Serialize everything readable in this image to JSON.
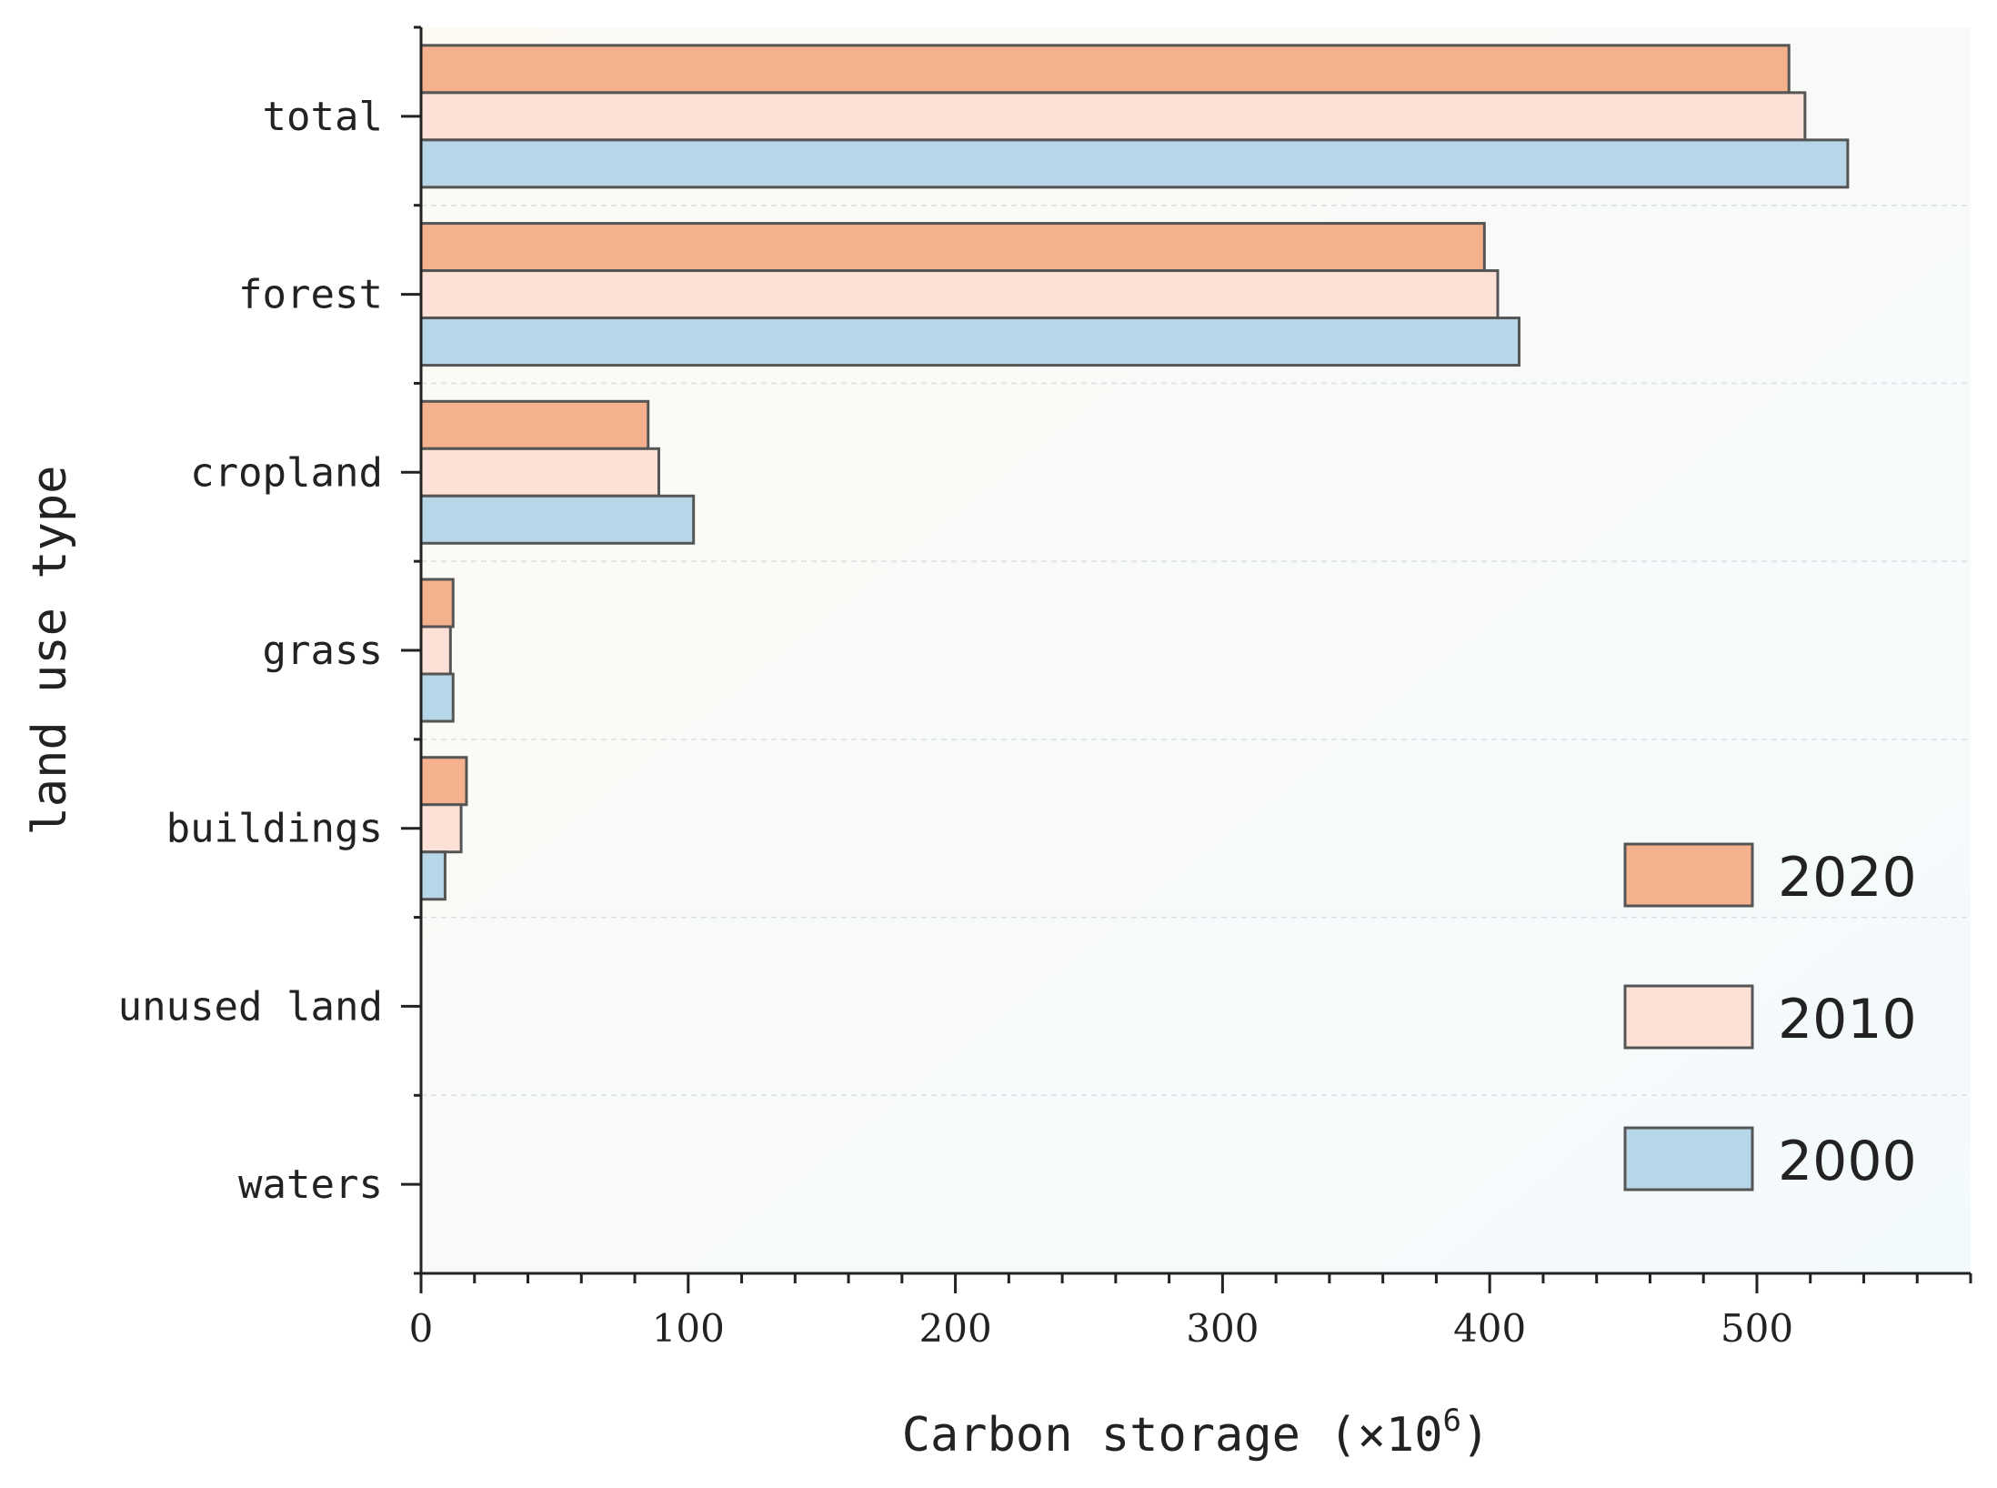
{
  "chart_data": {
    "type": "bar",
    "orientation": "horizontal",
    "categories": [
      "total",
      "forest",
      "cropland",
      "grass",
      "buildings",
      "unused land",
      "waters"
    ],
    "series": [
      {
        "name": "2020",
        "color": "#f5b08e",
        "values": [
          512,
          398,
          85,
          12,
          17,
          0,
          0
        ]
      },
      {
        "name": "2010",
        "color": "#fde1d6",
        "values": [
          518,
          403,
          89,
          11,
          15,
          0,
          0
        ]
      },
      {
        "name": "2000",
        "color": "#b7d7e8",
        "values": [
          534,
          411,
          102,
          12,
          9,
          0,
          0
        ]
      }
    ],
    "xlabel": "Carbon storage (×10",
    "xlabel_superscript": "6",
    "xlabel_close": ")",
    "ylabel": "land use type",
    "xlim": [
      0,
      580
    ],
    "xticks": [
      0,
      100,
      200,
      300,
      400,
      500
    ],
    "xtick_labels": [
      "0",
      "100",
      "200",
      "300",
      "400",
      "500"
    ],
    "grid": "dashed horizontal separators",
    "legend": "bottom-right",
    "bar_edge_color": "#555555"
  }
}
